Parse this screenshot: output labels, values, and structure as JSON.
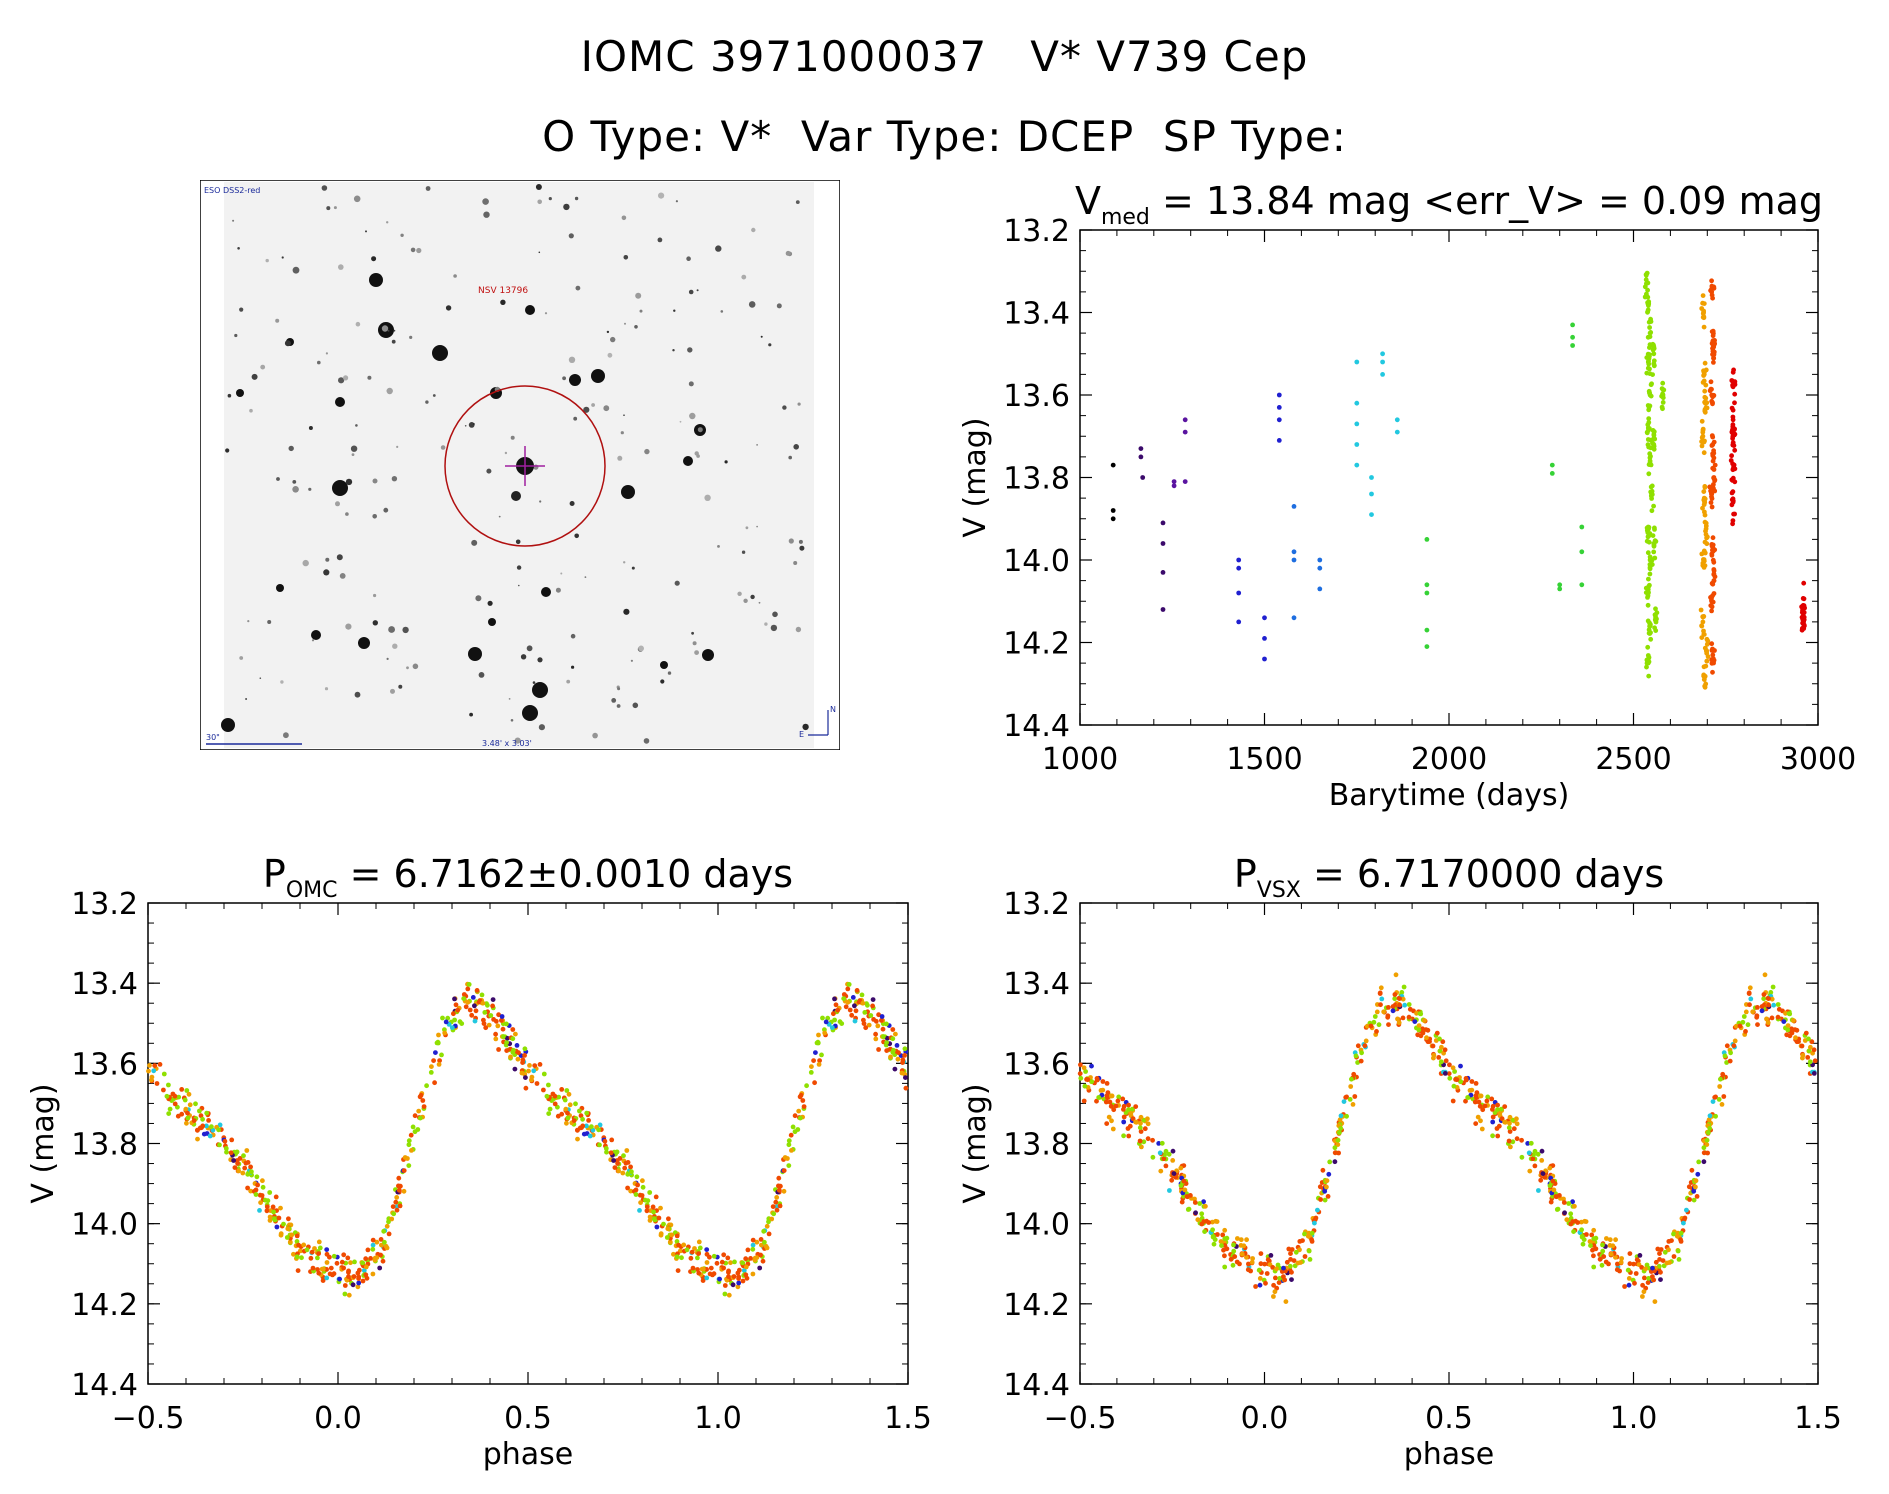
{
  "header": {
    "main_title": "IOMC 3971000037   V* V739 Cep",
    "sub_title": "O Type: V*  Var Type: DCEP  SP Type:"
  },
  "finder_chart": {
    "survey_label": "ESO DSS2-red",
    "target_label": "NSV 13796",
    "scale_label": "30\"",
    "fov_label": "3.48' x 3.03'",
    "north_label": "N",
    "east_label": "E"
  },
  "chart_data": [
    {
      "type": "scatter",
      "id": "lightcurve",
      "title_main": "V",
      "title_sub": "med",
      "title_rest": " = 13.84 mag <err_V> = 0.09 mag",
      "xlabel": "Barytime (days)",
      "ylabel": "V (mag)",
      "xlim": [
        1000,
        3000
      ],
      "ylim": [
        14.4,
        13.2
      ],
      "xticks": [
        1000,
        1500,
        2000,
        2500,
        3000
      ],
      "yticks": [
        13.2,
        13.4,
        13.6,
        13.8,
        14.0,
        14.2,
        14.4
      ],
      "xtick_labels": [
        "1000",
        "1500",
        "2000",
        "2500",
        "3000"
      ],
      "ytick_labels": [
        "13.2",
        "13.4",
        "13.6",
        "13.8",
        "14.0",
        "14.2",
        "14.4"
      ],
      "colors": [
        "#000000",
        "#3b0a6b",
        "#5a14a0",
        "#2020d0",
        "#1e6ee0",
        "#22c8e0",
        "#36d236",
        "#8fe000",
        "#f0a000",
        "#f04a00",
        "#e00000"
      ],
      "series": [
        {
          "name": "g0",
          "points": [
            [
              1090,
              13.77
            ],
            [
              1090,
              13.88
            ],
            [
              1090,
              13.9
            ]
          ]
        },
        {
          "name": "g1",
          "points": [
            [
              1165,
              13.73
            ],
            [
              1165,
              13.75
            ],
            [
              1170,
              13.8
            ],
            [
              1225,
              13.91
            ],
            [
              1225,
              13.96
            ],
            [
              1225,
              14.03
            ],
            [
              1225,
              14.12
            ]
          ]
        },
        {
          "name": "g2",
          "points": [
            [
              1255,
              13.81
            ],
            [
              1255,
              13.82
            ],
            [
              1285,
              13.66
            ],
            [
              1285,
              13.69
            ],
            [
              1285,
              13.81
            ]
          ]
        },
        {
          "name": "g3",
          "points": [
            [
              1430,
              14.0
            ],
            [
              1430,
              14.02
            ],
            [
              1430,
              14.08
            ],
            [
              1430,
              14.15
            ],
            [
              1500,
              14.14
            ],
            [
              1500,
              14.19
            ],
            [
              1500,
              14.24
            ],
            [
              1540,
              13.6
            ],
            [
              1540,
              13.63
            ],
            [
              1540,
              13.66
            ],
            [
              1540,
              13.71
            ]
          ]
        },
        {
          "name": "g4",
          "points": [
            [
              1580,
              13.87
            ],
            [
              1580,
              13.98
            ],
            [
              1580,
              14.0
            ],
            [
              1580,
              14.14
            ],
            [
              1650,
              14.0
            ],
            [
              1650,
              14.02
            ],
            [
              1650,
              14.07
            ]
          ]
        },
        {
          "name": "g5",
          "points": [
            [
              1750,
              13.52
            ],
            [
              1750,
              13.62
            ],
            [
              1750,
              13.67
            ],
            [
              1750,
              13.72
            ],
            [
              1750,
              13.77
            ],
            [
              1790,
              13.8
            ],
            [
              1790,
              13.84
            ],
            [
              1790,
              13.89
            ],
            [
              1820,
              13.5
            ],
            [
              1820,
              13.52
            ],
            [
              1820,
              13.55
            ],
            [
              1860,
              13.66
            ],
            [
              1860,
              13.69
            ]
          ]
        },
        {
          "name": "g6",
          "points": [
            [
              1940,
              13.95
            ],
            [
              1940,
              14.06
            ],
            [
              1940,
              14.08
            ],
            [
              1940,
              14.17
            ],
            [
              1940,
              14.21
            ],
            [
              2280,
              13.77
            ],
            [
              2280,
              13.79
            ],
            [
              2300,
              14.06
            ],
            [
              2300,
              14.07
            ],
            [
              2335,
              13.43
            ],
            [
              2335,
              13.46
            ],
            [
              2335,
              13.48
            ],
            [
              2360,
              13.92
            ],
            [
              2360,
              13.98
            ],
            [
              2360,
              14.06
            ]
          ]
        },
        {
          "name": "g7",
          "points": [
            [
              2535,
              13.33
            ],
            [
              2540,
              13.38
            ],
            [
              2545,
              13.45
            ],
            [
              2540,
              13.52
            ],
            [
              2545,
              13.6
            ],
            [
              2540,
              13.68
            ],
            [
              2545,
              13.76
            ],
            [
              2550,
              13.84
            ],
            [
              2540,
              13.92
            ],
            [
              2545,
              14.0
            ],
            [
              2540,
              14.08
            ],
            [
              2545,
              14.16
            ],
            [
              2540,
              14.24
            ],
            [
              2555,
              13.5
            ],
            [
              2555,
              13.72
            ],
            [
              2555,
              13.96
            ],
            [
              2560,
              14.14
            ],
            [
              2580,
              13.6
            ]
          ]
        },
        {
          "name": "g8",
          "points": [
            [
              2690,
              13.4
            ],
            [
              2692,
              13.55
            ],
            [
              2688,
              13.7
            ],
            [
              2692,
              13.85
            ],
            [
              2690,
              14.0
            ],
            [
              2688,
              14.15
            ],
            [
              2692,
              14.29
            ],
            [
              2695,
              13.62
            ],
            [
              2695,
              13.93
            ],
            [
              2698,
              14.22
            ]
          ]
        },
        {
          "name": "g9",
          "points": [
            [
              2712,
              13.35
            ],
            [
              2715,
              13.47
            ],
            [
              2712,
              13.6
            ],
            [
              2715,
              13.72
            ],
            [
              2712,
              13.84
            ],
            [
              2715,
              13.97
            ],
            [
              2712,
              14.1
            ],
            [
              2715,
              14.23
            ],
            [
              2718,
              13.5
            ],
            [
              2718,
              13.8
            ],
            [
              2718,
              14.05
            ]
          ]
        },
        {
          "name": "g10",
          "points": [
            [
              2770,
              13.58
            ],
            [
              2770,
              13.66
            ],
            [
              2770,
              13.72
            ],
            [
              2770,
              13.78
            ],
            [
              2770,
              13.86
            ],
            [
              2960,
              14.11
            ],
            [
              2960,
              14.13
            ],
            [
              2960,
              14.15
            ]
          ]
        }
      ]
    },
    {
      "type": "scatter",
      "id": "phase_omc",
      "title_main": "P",
      "title_sub": "OMC",
      "title_rest": " = 6.7162±0.0010 days",
      "period": 6.7162,
      "xlabel": "phase",
      "ylabel": "V (mag)",
      "xlim": [
        -0.5,
        1.5
      ],
      "ylim": [
        14.4,
        13.2
      ],
      "xticks": [
        -0.5,
        0.0,
        0.5,
        1.0,
        1.5
      ],
      "yticks": [
        13.2,
        13.4,
        13.6,
        13.8,
        14.0,
        14.2,
        14.4
      ],
      "xtick_labels": [
        "−0.5",
        "0.0",
        "0.5",
        "1.0",
        "1.5"
      ],
      "ytick_labels": [
        "13.2",
        "13.4",
        "13.6",
        "13.8",
        "14.0",
        "14.2",
        "14.4"
      ],
      "curve": [
        [
          0.0,
          14.12
        ],
        [
          0.06,
          14.13
        ],
        [
          0.12,
          14.05
        ],
        [
          0.18,
          13.85
        ],
        [
          0.26,
          13.58
        ],
        [
          0.31,
          13.47
        ],
        [
          0.35,
          13.44
        ],
        [
          0.42,
          13.5
        ],
        [
          0.5,
          13.62
        ],
        [
          0.58,
          13.7
        ],
        [
          0.66,
          13.75
        ],
        [
          0.74,
          13.85
        ],
        [
          0.82,
          13.96
        ],
        [
          0.9,
          14.06
        ],
        [
          1.0,
          14.12
        ]
      ]
    },
    {
      "type": "scatter",
      "id": "phase_vsx",
      "title_main": "P",
      "title_sub": "VSX",
      "title_rest": " = 6.7170000 days",
      "period": 6.717,
      "xlabel": "phase",
      "ylabel": "V (mag)",
      "xlim": [
        -0.5,
        1.5
      ],
      "ylim": [
        14.4,
        13.2
      ],
      "xticks": [
        -0.5,
        0.0,
        0.5,
        1.0,
        1.5
      ],
      "yticks": [
        13.2,
        13.4,
        13.6,
        13.8,
        14.0,
        14.2,
        14.4
      ],
      "xtick_labels": [
        "−0.5",
        "0.0",
        "0.5",
        "1.0",
        "1.5"
      ],
      "ytick_labels": [
        "13.2",
        "13.4",
        "13.6",
        "13.8",
        "14.0",
        "14.2",
        "14.4"
      ],
      "curve": [
        [
          0.0,
          14.12
        ],
        [
          0.06,
          14.13
        ],
        [
          0.12,
          14.05
        ],
        [
          0.18,
          13.85
        ],
        [
          0.26,
          13.58
        ],
        [
          0.31,
          13.47
        ],
        [
          0.35,
          13.44
        ],
        [
          0.42,
          13.5
        ],
        [
          0.5,
          13.62
        ],
        [
          0.58,
          13.7
        ],
        [
          0.66,
          13.75
        ],
        [
          0.74,
          13.85
        ],
        [
          0.82,
          13.96
        ],
        [
          0.9,
          14.06
        ],
        [
          1.0,
          14.12
        ]
      ]
    }
  ]
}
